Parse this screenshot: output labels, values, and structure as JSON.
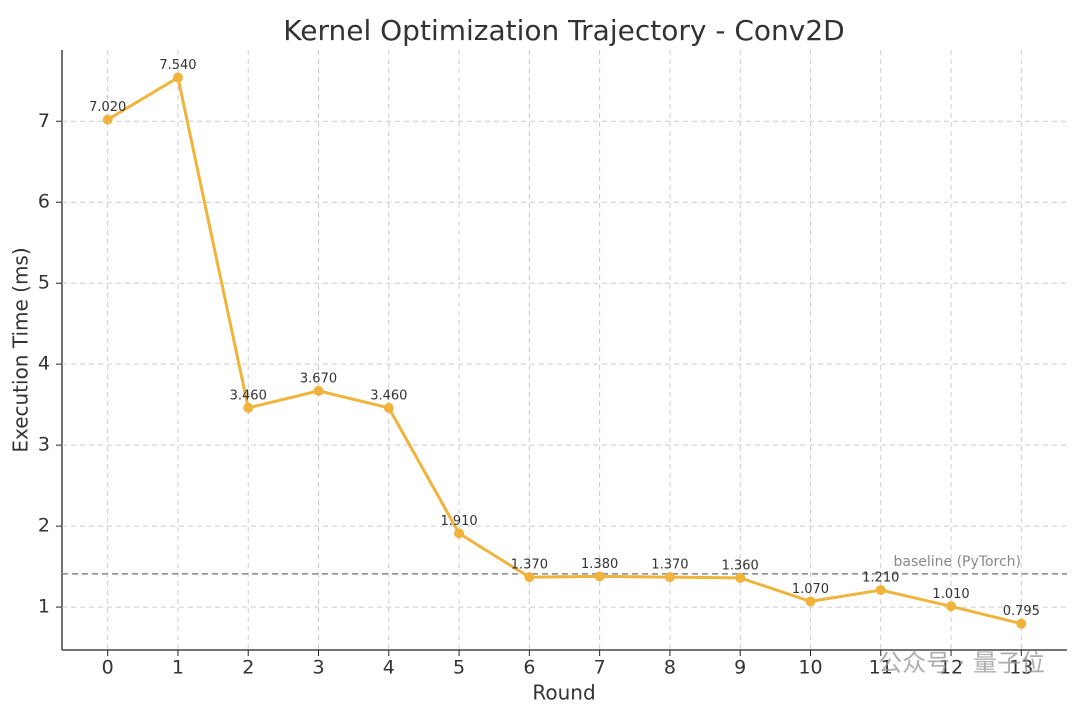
{
  "chart_data": {
    "type": "line",
    "title": "Kernel Optimization Trajectory - Conv2D",
    "x_label": "Round",
    "y_label": "Execution Time (ms)",
    "x": [
      0,
      1,
      2,
      3,
      4,
      5,
      6,
      7,
      8,
      9,
      10,
      11,
      12,
      13
    ],
    "values": [
      7.02,
      7.54,
      3.46,
      3.67,
      3.46,
      1.91,
      1.37,
      1.38,
      1.37,
      1.36,
      1.07,
      1.21,
      1.01,
      0.795
    ],
    "value_labels": [
      "7.020",
      "7.540",
      "3.460",
      "3.670",
      "3.460",
      "1.910",
      "1.370",
      "1.380",
      "1.370",
      "1.360",
      "1.070",
      "1.210",
      "1.010",
      "0.795"
    ],
    "color": "#f0b43c",
    "baseline": {
      "value": 1.41,
      "label": "baseline (PyTorch)"
    },
    "xlim": [
      -0.65,
      13.65
    ],
    "ylim": [
      0.47,
      7.88
    ],
    "xticks": [
      0,
      1,
      2,
      3,
      4,
      5,
      6,
      7,
      8,
      9,
      10,
      11,
      12,
      13
    ],
    "yticks": [
      1,
      2,
      3,
      4,
      5,
      6,
      7
    ],
    "grid": true,
    "watermark": "公众号 · 量子位"
  }
}
